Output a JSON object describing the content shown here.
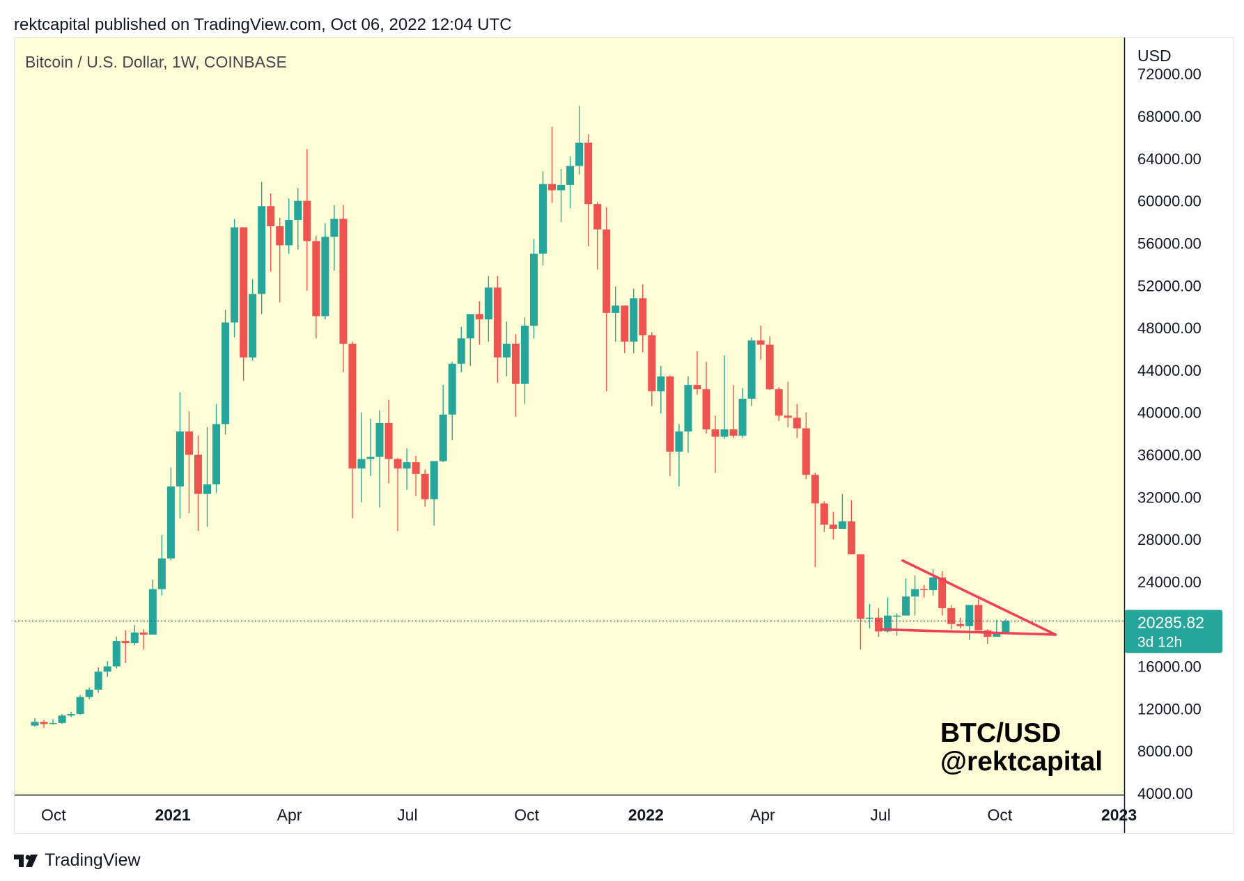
{
  "header": {
    "published": "rektcapital published on TradingView.com, Oct 06, 2022 12:04 UTC"
  },
  "symbol": {
    "title": "Bitcoin / U.S. Dollar, 1W, COINBASE"
  },
  "currency": "USD",
  "price_tag": {
    "price": "20285.82",
    "countdown": "3d 12h"
  },
  "watermark": {
    "line1": "BTC/USD",
    "line2": "@rektcapital"
  },
  "footer": {
    "brand": "TradingView",
    "logo_icon": "tradingview-logo-icon"
  },
  "colors": {
    "background": "#fffed6",
    "up": "#26a69a",
    "down": "#ef5350",
    "line": "#ef4258",
    "axis": "#131722"
  },
  "chart_data": {
    "type": "candlestick",
    "interval": "1W",
    "ylim": [
      4000,
      72000
    ],
    "yticks": [
      4000,
      8000,
      12000,
      16000,
      20000,
      24000,
      28000,
      32000,
      36000,
      40000,
      44000,
      48000,
      52000,
      56000,
      60000,
      64000,
      68000,
      72000
    ],
    "ytick_labels": [
      "4000.00",
      "8000.00",
      "12000.00",
      "16000.00",
      "20000.00",
      "24000.00",
      "28000.00",
      "32000.00",
      "36000.00",
      "40000.00",
      "44000.00",
      "48000.00",
      "52000.00",
      "56000.00",
      "60000.00",
      "64000.00",
      "68000.00",
      "72000.00"
    ],
    "xticks": [
      {
        "label": "Oct",
        "date": "2020-10-01",
        "bold": false
      },
      {
        "label": "2021",
        "date": "2021-01-01",
        "bold": true
      },
      {
        "label": "Apr",
        "date": "2021-04-01",
        "bold": false
      },
      {
        "label": "Jul",
        "date": "2021-07-01",
        "bold": false
      },
      {
        "label": "Oct",
        "date": "2021-10-01",
        "bold": false
      },
      {
        "label": "2022",
        "date": "2022-01-01",
        "bold": true
      },
      {
        "label": "Apr",
        "date": "2022-04-01",
        "bold": false
      },
      {
        "label": "Jul",
        "date": "2022-07-01",
        "bold": false
      },
      {
        "label": "Oct",
        "date": "2022-10-01",
        "bold": false
      },
      {
        "label": "2023",
        "date": "2023-01-01",
        "bold": true
      }
    ],
    "current_price": 20285.82,
    "candles": [
      {
        "date": "2020-09-14",
        "o": 10400,
        "h": 11100,
        "l": 10300,
        "c": 10750
      },
      {
        "date": "2020-09-21",
        "o": 10750,
        "h": 10950,
        "l": 10200,
        "c": 10550
      },
      {
        "date": "2020-09-28",
        "o": 10550,
        "h": 11000,
        "l": 10500,
        "c": 10650
      },
      {
        "date": "2020-10-05",
        "o": 10650,
        "h": 11500,
        "l": 10550,
        "c": 11350
      },
      {
        "date": "2020-10-12",
        "o": 11350,
        "h": 11700,
        "l": 11200,
        "c": 11500
      },
      {
        "date": "2020-10-19",
        "o": 11500,
        "h": 13300,
        "l": 11400,
        "c": 13100
      },
      {
        "date": "2020-10-26",
        "o": 13100,
        "h": 14000,
        "l": 12900,
        "c": 13800
      },
      {
        "date": "2020-11-02",
        "o": 13800,
        "h": 15900,
        "l": 13500,
        "c": 15500
      },
      {
        "date": "2020-11-09",
        "o": 15500,
        "h": 16500,
        "l": 15000,
        "c": 16000
      },
      {
        "date": "2020-11-16",
        "o": 16000,
        "h": 18800,
        "l": 15800,
        "c": 18400
      },
      {
        "date": "2020-11-23",
        "o": 18400,
        "h": 19400,
        "l": 16300,
        "c": 18200
      },
      {
        "date": "2020-11-30",
        "o": 18200,
        "h": 19900,
        "l": 18000,
        "c": 19200
      },
      {
        "date": "2020-12-07",
        "o": 19200,
        "h": 19500,
        "l": 17600,
        "c": 19000
      },
      {
        "date": "2020-12-14",
        "o": 19000,
        "h": 24200,
        "l": 19000,
        "c": 23300
      },
      {
        "date": "2020-12-21",
        "o": 23300,
        "h": 28400,
        "l": 22700,
        "c": 26200
      },
      {
        "date": "2020-12-28",
        "o": 26200,
        "h": 34800,
        "l": 26000,
        "c": 33000
      },
      {
        "date": "2021-01-04",
        "o": 33000,
        "h": 41900,
        "l": 30000,
        "c": 38200
      },
      {
        "date": "2021-01-11",
        "o": 38200,
        "h": 40100,
        "l": 30500,
        "c": 36000
      },
      {
        "date": "2021-01-18",
        "o": 36000,
        "h": 37800,
        "l": 28800,
        "c": 32300
      },
      {
        "date": "2021-01-25",
        "o": 32300,
        "h": 38600,
        "l": 29200,
        "c": 33200
      },
      {
        "date": "2021-02-01",
        "o": 33200,
        "h": 40800,
        "l": 32400,
        "c": 38900
      },
      {
        "date": "2021-02-08",
        "o": 38900,
        "h": 49700,
        "l": 37900,
        "c": 48500
      },
      {
        "date": "2021-02-15",
        "o": 48500,
        "h": 58300,
        "l": 47100,
        "c": 57500
      },
      {
        "date": "2021-02-22",
        "o": 57500,
        "h": 57500,
        "l": 43000,
        "c": 45200
      },
      {
        "date": "2021-03-01",
        "o": 45200,
        "h": 52600,
        "l": 44900,
        "c": 51200
      },
      {
        "date": "2021-03-08",
        "o": 51200,
        "h": 61800,
        "l": 49300,
        "c": 59500
      },
      {
        "date": "2021-03-15",
        "o": 59500,
        "h": 60700,
        "l": 53300,
        "c": 57600
      },
      {
        "date": "2021-03-22",
        "o": 57600,
        "h": 58400,
        "l": 50400,
        "c": 55800
      },
      {
        "date": "2021-03-29",
        "o": 55800,
        "h": 60200,
        "l": 55000,
        "c": 58200
      },
      {
        "date": "2021-04-05",
        "o": 58200,
        "h": 61200,
        "l": 55400,
        "c": 60000
      },
      {
        "date": "2021-04-12",
        "o": 60000,
        "h": 64900,
        "l": 51500,
        "c": 56200
      },
      {
        "date": "2021-04-19",
        "o": 56200,
        "h": 56700,
        "l": 47000,
        "c": 49100
      },
      {
        "date": "2021-04-26",
        "o": 49100,
        "h": 57900,
        "l": 48800,
        "c": 56600
      },
      {
        "date": "2021-05-03",
        "o": 56600,
        "h": 59600,
        "l": 53400,
        "c": 58300
      },
      {
        "date": "2021-05-10",
        "o": 58300,
        "h": 59600,
        "l": 43800,
        "c": 46500
      },
      {
        "date": "2021-05-17",
        "o": 46500,
        "h": 46700,
        "l": 30000,
        "c": 34700
      },
      {
        "date": "2021-05-24",
        "o": 34700,
        "h": 40000,
        "l": 31500,
        "c": 35600
      },
      {
        "date": "2021-05-31",
        "o": 35600,
        "h": 39400,
        "l": 34000,
        "c": 35800
      },
      {
        "date": "2021-06-07",
        "o": 35800,
        "h": 40200,
        "l": 31000,
        "c": 39000
      },
      {
        "date": "2021-06-14",
        "o": 39000,
        "h": 41200,
        "l": 33300,
        "c": 35600
      },
      {
        "date": "2021-06-21",
        "o": 35600,
        "h": 35700,
        "l": 28800,
        "c": 34700
      },
      {
        "date": "2021-06-28",
        "o": 34700,
        "h": 36600,
        "l": 32700,
        "c": 35300
      },
      {
        "date": "2021-07-05",
        "o": 35300,
        "h": 35900,
        "l": 32100,
        "c": 34200
      },
      {
        "date": "2021-07-12",
        "o": 34200,
        "h": 34600,
        "l": 31100,
        "c": 31800
      },
      {
        "date": "2021-07-19",
        "o": 31800,
        "h": 35400,
        "l": 29300,
        "c": 35400
      },
      {
        "date": "2021-07-26",
        "o": 35400,
        "h": 42600,
        "l": 35300,
        "c": 39800
      },
      {
        "date": "2021-08-02",
        "o": 39800,
        "h": 44800,
        "l": 37400,
        "c": 44600
      },
      {
        "date": "2021-08-09",
        "o": 44600,
        "h": 48100,
        "l": 43800,
        "c": 47000
      },
      {
        "date": "2021-08-16",
        "o": 47000,
        "h": 49300,
        "l": 44400,
        "c": 49300
      },
      {
        "date": "2021-08-23",
        "o": 49300,
        "h": 50500,
        "l": 46400,
        "c": 48800
      },
      {
        "date": "2021-08-30",
        "o": 48800,
        "h": 52900,
        "l": 46700,
        "c": 51800
      },
      {
        "date": "2021-09-06",
        "o": 51800,
        "h": 52900,
        "l": 42800,
        "c": 45200
      },
      {
        "date": "2021-09-13",
        "o": 45200,
        "h": 48600,
        "l": 43400,
        "c": 46500
      },
      {
        "date": "2021-09-20",
        "o": 46500,
        "h": 47400,
        "l": 39600,
        "c": 42700
      },
      {
        "date": "2021-09-27",
        "o": 42700,
        "h": 49000,
        "l": 40800,
        "c": 48200
      },
      {
        "date": "2021-10-04",
        "o": 48200,
        "h": 56400,
        "l": 47000,
        "c": 55000
      },
      {
        "date": "2021-10-11",
        "o": 55000,
        "h": 62800,
        "l": 53900,
        "c": 61600
      },
      {
        "date": "2021-10-18",
        "o": 61600,
        "h": 67000,
        "l": 59800,
        "c": 61000
      },
      {
        "date": "2021-10-25",
        "o": 61000,
        "h": 63000,
        "l": 58000,
        "c": 61500
      },
      {
        "date": "2021-11-01",
        "o": 61500,
        "h": 64200,
        "l": 59300,
        "c": 63300
      },
      {
        "date": "2021-11-08",
        "o": 63300,
        "h": 69000,
        "l": 62500,
        "c": 65500
      },
      {
        "date": "2021-11-15",
        "o": 65500,
        "h": 66300,
        "l": 55700,
        "c": 59700
      },
      {
        "date": "2021-11-22",
        "o": 59700,
        "h": 59900,
        "l": 53500,
        "c": 57300
      },
      {
        "date": "2021-11-29",
        "o": 57300,
        "h": 59400,
        "l": 42000,
        "c": 49400
      },
      {
        "date": "2021-12-06",
        "o": 49400,
        "h": 51900,
        "l": 46700,
        "c": 50100
      },
      {
        "date": "2021-12-13",
        "o": 50100,
        "h": 50100,
        "l": 45600,
        "c": 46700
      },
      {
        "date": "2021-12-20",
        "o": 46700,
        "h": 51700,
        "l": 45600,
        "c": 50800
      },
      {
        "date": "2021-12-27",
        "o": 50800,
        "h": 52100,
        "l": 45700,
        "c": 47300
      },
      {
        "date": "2022-01-03",
        "o": 47300,
        "h": 47600,
        "l": 40600,
        "c": 42000
      },
      {
        "date": "2022-01-10",
        "o": 42000,
        "h": 44400,
        "l": 39900,
        "c": 43400
      },
      {
        "date": "2022-01-17",
        "o": 43400,
        "h": 43500,
        "l": 34000,
        "c": 36300
      },
      {
        "date": "2022-01-24",
        "o": 36300,
        "h": 38900,
        "l": 33000,
        "c": 38200
      },
      {
        "date": "2022-01-31",
        "o": 38200,
        "h": 43400,
        "l": 36200,
        "c": 42600
      },
      {
        "date": "2022-02-07",
        "o": 42600,
        "h": 45800,
        "l": 41700,
        "c": 42200
      },
      {
        "date": "2022-02-14",
        "o": 42200,
        "h": 44800,
        "l": 38000,
        "c": 38400
      },
      {
        "date": "2022-02-21",
        "o": 38400,
        "h": 39700,
        "l": 34300,
        "c": 37700
      },
      {
        "date": "2022-02-28",
        "o": 37700,
        "h": 45400,
        "l": 37500,
        "c": 38400
      },
      {
        "date": "2022-03-07",
        "o": 38400,
        "h": 42600,
        "l": 37600,
        "c": 37800
      },
      {
        "date": "2022-03-14",
        "o": 37800,
        "h": 42300,
        "l": 37600,
        "c": 41300
      },
      {
        "date": "2022-03-21",
        "o": 41300,
        "h": 47100,
        "l": 40600,
        "c": 46800
      },
      {
        "date": "2022-03-28",
        "o": 46800,
        "h": 48200,
        "l": 45000,
        "c": 46400
      },
      {
        "date": "2022-04-04",
        "o": 46400,
        "h": 47200,
        "l": 42100,
        "c": 42200
      },
      {
        "date": "2022-04-11",
        "o": 42200,
        "h": 42400,
        "l": 39200,
        "c": 39700
      },
      {
        "date": "2022-04-18",
        "o": 39700,
        "h": 42900,
        "l": 38600,
        "c": 39500
      },
      {
        "date": "2022-04-25",
        "o": 39500,
        "h": 40800,
        "l": 37600,
        "c": 38500
      },
      {
        "date": "2022-05-02",
        "o": 38500,
        "h": 40000,
        "l": 33700,
        "c": 34100
      },
      {
        "date": "2022-05-09",
        "o": 34100,
        "h": 34300,
        "l": 25400,
        "c": 31400
      },
      {
        "date": "2022-05-16",
        "o": 31400,
        "h": 31600,
        "l": 28700,
        "c": 29400
      },
      {
        "date": "2022-05-23",
        "o": 29400,
        "h": 30600,
        "l": 28000,
        "c": 29000
      },
      {
        "date": "2022-05-30",
        "o": 29000,
        "h": 32300,
        "l": 29200,
        "c": 29700
      },
      {
        "date": "2022-06-06",
        "o": 29700,
        "h": 31700,
        "l": 26600,
        "c": 26600
      },
      {
        "date": "2022-06-13",
        "o": 26600,
        "h": 26600,
        "l": 17600,
        "c": 20500
      },
      {
        "date": "2022-06-20",
        "o": 20500,
        "h": 21900,
        "l": 19600,
        "c": 20600
      },
      {
        "date": "2022-06-27",
        "o": 20600,
        "h": 21500,
        "l": 18800,
        "c": 19300
      },
      {
        "date": "2022-07-04",
        "o": 19300,
        "h": 22500,
        "l": 19200,
        "c": 20800
      },
      {
        "date": "2022-07-11",
        "o": 20800,
        "h": 21000,
        "l": 18900,
        "c": 20800
      },
      {
        "date": "2022-07-18",
        "o": 20800,
        "h": 24300,
        "l": 20800,
        "c": 22600
      },
      {
        "date": "2022-07-25",
        "o": 22600,
        "h": 24600,
        "l": 20800,
        "c": 23300
      },
      {
        "date": "2022-08-01",
        "o": 23300,
        "h": 23700,
        "l": 22500,
        "c": 23200
      },
      {
        "date": "2022-08-08",
        "o": 23200,
        "h": 25200,
        "l": 22700,
        "c": 24400
      },
      {
        "date": "2022-08-15",
        "o": 24400,
        "h": 25000,
        "l": 20800,
        "c": 21500
      },
      {
        "date": "2022-08-22",
        "o": 21500,
        "h": 21800,
        "l": 19500,
        "c": 20000
      },
      {
        "date": "2022-08-29",
        "o": 20000,
        "h": 20600,
        "l": 19600,
        "c": 19800
      },
      {
        "date": "2022-09-05",
        "o": 19800,
        "h": 21800,
        "l": 18500,
        "c": 21800
      },
      {
        "date": "2022-09-12",
        "o": 21800,
        "h": 22700,
        "l": 19400,
        "c": 19400
      },
      {
        "date": "2022-09-19",
        "o": 19400,
        "h": 19500,
        "l": 18100,
        "c": 18800
      },
      {
        "date": "2022-09-26",
        "o": 18800,
        "h": 20400,
        "l": 18800,
        "c": 19200
      },
      {
        "date": "2022-10-03",
        "o": 19200,
        "h": 20500,
        "l": 19100,
        "c": 20286
      }
    ],
    "trendlines": [
      {
        "name": "upper",
        "from": {
          "date": "2022-07-18",
          "y": 26000
        },
        "to": {
          "date": "2022-11-13",
          "y": 19000
        }
      },
      {
        "name": "lower",
        "from": {
          "date": "2022-07-01",
          "y": 19500
        },
        "to": {
          "date": "2022-11-13",
          "y": 19000
        }
      }
    ]
  }
}
